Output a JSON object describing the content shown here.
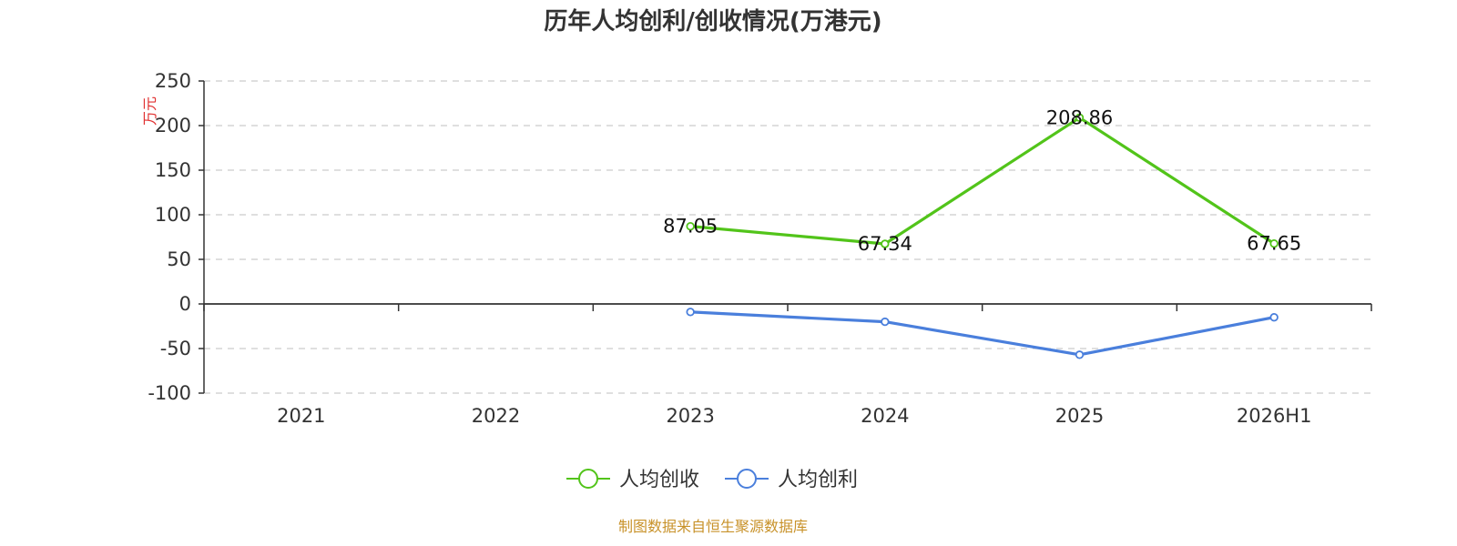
{
  "chart_data": {
    "type": "line",
    "title": "历年人均创利/创收情况(万港元)",
    "ylabel": "万元",
    "xlabel": "",
    "categories": [
      "2021",
      "2022",
      "2023",
      "2024",
      "2025",
      "2026H1"
    ],
    "ylim": [
      -100,
      250
    ],
    "yticks": [
      250,
      200,
      150,
      100,
      50,
      0,
      -50,
      -100
    ],
    "grid": true,
    "legend_position": "bottom",
    "series": [
      {
        "name": "人均创收",
        "color": "#52c41a",
        "values": [
          null,
          null,
          87.05,
          67.34,
          208.86,
          67.65
        ],
        "labels": [
          null,
          null,
          "87.05",
          "67.34",
          "208.86",
          "67.65"
        ]
      },
      {
        "name": "人均创利",
        "color": "#4a7fdc",
        "values": [
          null,
          null,
          -9,
          -20,
          -57,
          -15
        ],
        "labels": [
          null,
          null,
          null,
          null,
          null,
          null
        ]
      }
    ]
  },
  "source": {
    "text": "制图数据来自恒生聚源数据库",
    "color": "#c8922a"
  },
  "unit_color": "#e03030"
}
